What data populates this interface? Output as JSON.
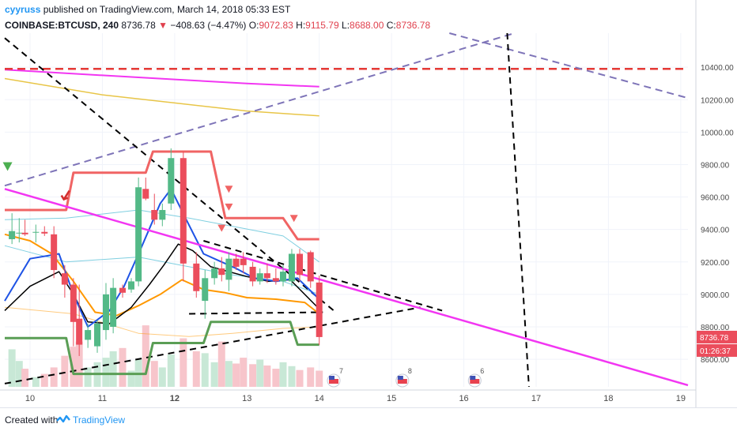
{
  "header": {
    "author": "cyyruss",
    "published": "published on TradingView.com, March 14, 2018 05:33 EST",
    "symbol": "COINBASE:BTCUSD, 240",
    "last": "8736.78",
    "change": "−408.63 (−4.47%)",
    "o_label": "O:",
    "o": "9072.83",
    "h_label": "H:",
    "h": "9115.79",
    "l_label": "L:",
    "l": "8688.00",
    "c_label": "C:",
    "c": "8736.78"
  },
  "footer": {
    "created_with": "Created with",
    "brand": "TradingView"
  },
  "price_badge": "8736.78",
  "timer_badge": "01:26:37",
  "event_badges": [
    {
      "x": 14.2,
      "count": "7"
    },
    {
      "x": 15.15,
      "count": "8"
    },
    {
      "x": 16.15,
      "count": "6"
    }
  ],
  "colors": {
    "bull": "#53b987",
    "bear": "#eb4d5c",
    "ma_blue": "#1e53e5",
    "ma_black": "#000000",
    "ma_orange": "#ff9800",
    "magenta": "#f236f2",
    "red_dash": "#e53935",
    "purple_dash": "#7e74b8",
    "yellow": "#e8c547",
    "env_red": "#f06464",
    "env_green": "#5a9e55",
    "cyan": "#7fcfe0",
    "vol_bull": "#c8e8d6",
    "vol_bear": "#f7c5cb"
  },
  "chart_data": {
    "type": "candlestick",
    "x_axis": {
      "min": 9.65,
      "max": 19.1,
      "ticks": [
        10,
        11,
        12,
        13,
        14,
        15,
        16,
        17,
        18,
        19
      ],
      "bold_ticks": [
        12
      ],
      "tick_labels": [
        "10",
        "11",
        "12",
        "13",
        "14",
        "15",
        "16",
        "17",
        "18",
        "19"
      ]
    },
    "y_axis": {
      "min": 8430,
      "max": 10610,
      "ticks": [
        8600,
        8800,
        9000,
        9200,
        9400,
        9600,
        9800,
        10000,
        10200,
        10400
      ],
      "tick_labels": [
        "8600.00",
        "8800.00",
        "9000.00",
        "9200.00",
        "9400.00",
        "9600.00",
        "9800.00",
        "10000.00",
        "10200.00",
        "10400.00"
      ]
    },
    "candles": [
      {
        "t": 9.75,
        "o": 9340,
        "h": 9500,
        "l": 9310,
        "c": 9390
      },
      {
        "t": 9.85,
        "o": 9375,
        "h": 9470,
        "l": 9320,
        "c": 9380
      },
      {
        "t": 9.93,
        "o": 9380,
        "h": 9460,
        "l": 9360,
        "c": 9370
      },
      {
        "t": 10.08,
        "o": 9380,
        "h": 9430,
        "l": 9320,
        "c": 9385
      },
      {
        "t": 10.2,
        "o": 9385,
        "h": 9420,
        "l": 9360,
        "c": 9375
      },
      {
        "t": 10.33,
        "o": 9370,
        "h": 9420,
        "l": 9100,
        "c": 9150
      },
      {
        "t": 10.48,
        "o": 9130,
        "h": 9180,
        "l": 8980,
        "c": 9060
      },
      {
        "t": 10.6,
        "o": 9060,
        "h": 9100,
        "l": 8680,
        "c": 8830
      },
      {
        "t": 10.68,
        "o": 8850,
        "h": 9060,
        "l": 8620,
        "c": 8690
      },
      {
        "t": 10.8,
        "o": 8720,
        "h": 8820,
        "l": 8670,
        "c": 8780
      },
      {
        "t": 10.93,
        "o": 8680,
        "h": 8840,
        "l": 8640,
        "c": 8820
      },
      {
        "t": 11.05,
        "o": 8780,
        "h": 9070,
        "l": 8720,
        "c": 9000
      },
      {
        "t": 11.15,
        "o": 8800,
        "h": 9100,
        "l": 8760,
        "c": 9040
      },
      {
        "t": 11.28,
        "o": 9040,
        "h": 9060,
        "l": 8980,
        "c": 9010
      },
      {
        "t": 11.4,
        "o": 9030,
        "h": 9100,
        "l": 9010,
        "c": 9080
      },
      {
        "t": 11.5,
        "o": 9080,
        "h": 9720,
        "l": 9050,
        "c": 9660
      },
      {
        "t": 11.6,
        "o": 9650,
        "h": 9720,
        "l": 9580,
        "c": 9590
      },
      {
        "t": 11.72,
        "o": 9520,
        "h": 9620,
        "l": 9430,
        "c": 9460
      },
      {
        "t": 11.83,
        "o": 9460,
        "h": 9560,
        "l": 9420,
        "c": 9520
      },
      {
        "t": 11.95,
        "o": 9560,
        "h": 9900,
        "l": 9520,
        "c": 9840
      },
      {
        "t": 12.12,
        "o": 9840,
        "h": 9880,
        "l": 9080,
        "c": 9190
      },
      {
        "t": 12.3,
        "o": 9190,
        "h": 9260,
        "l": 8980,
        "c": 9020
      },
      {
        "t": 12.42,
        "o": 8960,
        "h": 9150,
        "l": 8850,
        "c": 9100
      },
      {
        "t": 12.55,
        "o": 9100,
        "h": 9200,
        "l": 9060,
        "c": 9160
      },
      {
        "t": 12.65,
        "o": 9160,
        "h": 9230,
        "l": 9080,
        "c": 9120
      },
      {
        "t": 12.75,
        "o": 9090,
        "h": 9260,
        "l": 9020,
        "c": 9220
      },
      {
        "t": 12.85,
        "o": 9220,
        "h": 9250,
        "l": 9150,
        "c": 9170
      },
      {
        "t": 12.95,
        "o": 9220,
        "h": 9260,
        "l": 9130,
        "c": 9180
      },
      {
        "t": 13.08,
        "o": 9170,
        "h": 9200,
        "l": 9050,
        "c": 9080
      },
      {
        "t": 13.18,
        "o": 9080,
        "h": 9160,
        "l": 9060,
        "c": 9130
      },
      {
        "t": 13.28,
        "o": 9130,
        "h": 9190,
        "l": 9070,
        "c": 9100
      },
      {
        "t": 13.4,
        "o": 9100,
        "h": 9160,
        "l": 9060,
        "c": 9080
      },
      {
        "t": 13.5,
        "o": 9080,
        "h": 9180,
        "l": 9050,
        "c": 9140
      },
      {
        "t": 13.62,
        "o": 9080,
        "h": 9280,
        "l": 9050,
        "c": 9250
      },
      {
        "t": 13.73,
        "o": 9250,
        "h": 9280,
        "l": 9080,
        "c": 9120
      },
      {
        "t": 13.88,
        "o": 9260,
        "h": 9270,
        "l": 9040,
        "c": 9080
      },
      {
        "t": 14.0,
        "o": 9073,
        "h": 9116,
        "l": 8688,
        "c": 8737
      }
    ],
    "volume_heights": [
      0.58,
      0.4,
      0.28,
      0.15,
      0.2,
      0.3,
      0.48,
      0.62,
      0.7,
      0.3,
      0.38,
      0.45,
      0.55,
      0.6,
      0.25,
      0.42,
      0.95,
      0.4,
      0.3,
      0.5,
      0.75,
      0.55,
      0.52,
      0.38,
      0.7,
      0.4,
      0.36,
      0.45,
      0.35,
      0.42,
      0.33,
      0.28,
      0.38,
      0.32,
      0.26,
      0.3,
      0.25
    ],
    "lines": {
      "magenta_top": [
        [
          9.65,
          10385
        ],
        [
          11,
          10350
        ],
        [
          12,
          10325
        ],
        [
          13,
          10300
        ],
        [
          14,
          10280
        ]
      ],
      "yellow": [
        [
          9.65,
          10330
        ],
        [
          11,
          10230
        ],
        [
          12,
          10180
        ],
        [
          13,
          10130
        ],
        [
          14,
          10100
        ]
      ],
      "magenta_diag": [
        [
          9.65,
          9650
        ],
        [
          19.1,
          8440
        ]
      ],
      "red_dash_h": [
        [
          9.65,
          10390
        ],
        [
          19.1,
          10390
        ]
      ],
      "purple_up": [
        [
          9.65,
          9670
        ],
        [
          16.7,
          10610
        ]
      ],
      "purple_down": [
        [
          15.8,
          10610
        ],
        [
          19.1,
          10210
        ]
      ],
      "black_dash_1": [
        [
          9.65,
          10580
        ],
        [
          14.2,
          8900
        ]
      ],
      "black_dash_2": [
        [
          12.4,
          9330
        ],
        [
          15.7,
          8900
        ]
      ],
      "black_dash_3": [
        [
          9.65,
          8450
        ],
        [
          15.4,
          8920
        ]
      ],
      "black_dash_v": [
        [
          16.6,
          10610
        ],
        [
          16.9,
          8430
        ]
      ],
      "black_dash_short": [
        [
          12.2,
          8880
        ],
        [
          14.05,
          8890
        ]
      ],
      "env_red": [
        [
          9.65,
          9520
        ],
        [
          10.5,
          9520
        ],
        [
          10.6,
          9750
        ],
        [
          11.6,
          9750
        ],
        [
          11.7,
          9880
        ],
        [
          12.5,
          9880
        ],
        [
          12.7,
          9470
        ],
        [
          13.5,
          9470
        ],
        [
          13.7,
          9340
        ],
        [
          14.0,
          9340
        ]
      ],
      "env_green": [
        [
          9.65,
          8730
        ],
        [
          10.5,
          8730
        ],
        [
          10.6,
          8510
        ],
        [
          11.6,
          8510
        ],
        [
          11.7,
          8700
        ],
        [
          12.4,
          8700
        ],
        [
          12.5,
          8830
        ],
        [
          13.6,
          8830
        ],
        [
          13.7,
          8690
        ],
        [
          14.0,
          8690
        ]
      ],
      "ma_blue": [
        [
          9.65,
          8960
        ],
        [
          10,
          9220
        ],
        [
          10.4,
          9250
        ],
        [
          10.6,
          9000
        ],
        [
          10.8,
          8800
        ],
        [
          11.1,
          8900
        ],
        [
          11.3,
          9050
        ],
        [
          11.55,
          9300
        ],
        [
          11.8,
          9560
        ],
        [
          11.95,
          9650
        ],
        [
          12.15,
          9470
        ],
        [
          12.4,
          9250
        ],
        [
          12.65,
          9200
        ],
        [
          12.85,
          9160
        ],
        [
          13.1,
          9100
        ],
        [
          13.4,
          9080
        ],
        [
          13.7,
          9100
        ],
        [
          14.0,
          8970
        ]
      ],
      "ma_black": [
        [
          9.65,
          8900
        ],
        [
          10,
          9050
        ],
        [
          10.4,
          9140
        ],
        [
          10.6,
          9000
        ],
        [
          10.8,
          8830
        ],
        [
          11.1,
          8820
        ],
        [
          11.4,
          8920
        ],
        [
          11.65,
          9060
        ],
        [
          11.85,
          9180
        ],
        [
          12.05,
          9310
        ],
        [
          12.25,
          9270
        ],
        [
          12.5,
          9170
        ],
        [
          12.75,
          9140
        ],
        [
          13.0,
          9110
        ],
        [
          13.3,
          9080
        ],
        [
          13.6,
          9090
        ],
        [
          14.0,
          8910
        ]
      ],
      "ma_orange": [
        [
          9.65,
          9370
        ],
        [
          10,
          9330
        ],
        [
          10.3,
          9250
        ],
        [
          10.6,
          9080
        ],
        [
          10.9,
          8890
        ],
        [
          11.2,
          8870
        ],
        [
          11.5,
          8930
        ],
        [
          11.8,
          9000
        ],
        [
          12.1,
          9090
        ],
        [
          12.4,
          9030
        ],
        [
          12.7,
          9010
        ],
        [
          13.0,
          8980
        ],
        [
          13.4,
          8970
        ],
        [
          13.8,
          8950
        ],
        [
          14.0,
          8880
        ]
      ],
      "cyan_upper": [
        [
          9.65,
          9460
        ],
        [
          10.5,
          9470
        ],
        [
          11.5,
          9520
        ],
        [
          12.2,
          9470
        ],
        [
          12.8,
          9420
        ],
        [
          13.5,
          9360
        ],
        [
          14.0,
          9200
        ]
      ],
      "cyan_lower": [
        [
          9.65,
          9300
        ],
        [
          10.5,
          9200
        ],
        [
          11.5,
          9230
        ],
        [
          12.2,
          9170
        ],
        [
          12.8,
          9120
        ],
        [
          13.5,
          9080
        ],
        [
          14.0,
          9000
        ]
      ],
      "orange_faint": [
        [
          9.65,
          8920
        ],
        [
          10.6,
          8880
        ],
        [
          11.5,
          8760
        ],
        [
          12.2,
          8740
        ],
        [
          12.8,
          8760
        ],
        [
          13.5,
          8790
        ],
        [
          14.0,
          8800
        ]
      ]
    },
    "markers_down": [
      [
        12.75,
        9650
      ],
      [
        12.75,
        9540
      ],
      [
        12.65,
        9410
      ],
      [
        13.65,
        9470
      ]
    ],
    "marker_red_arrow": [
      10.5,
      9600
    ],
    "marker_green": [
      9.7,
      9790
    ]
  }
}
